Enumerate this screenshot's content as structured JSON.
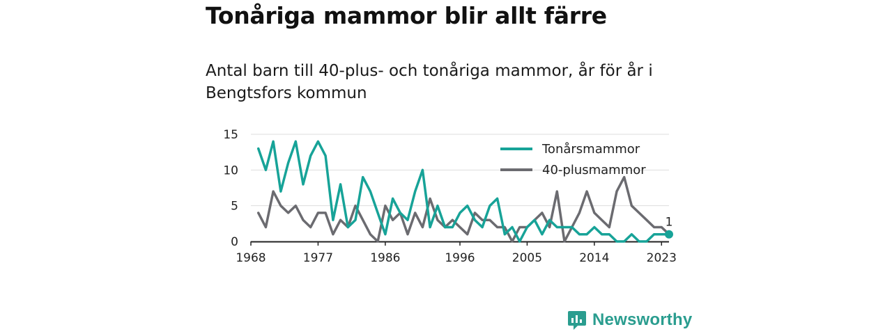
{
  "title": "Tonåriga mammor blir allt färre",
  "subtitle": "Antal barn till 40-plus- och tonåriga mammor, år för år i Bengtsfors kommun",
  "brand": {
    "name": "Newsworthy",
    "icon": "newsworthy-logo-icon",
    "color": "#2a9d8f"
  },
  "chart_data": {
    "type": "line",
    "title": "Tonåriga mammor blir allt färre",
    "subtitle": "Antal barn till 40-plus- och tonåriga mammor, år för år i Bengtsfors kommun",
    "xlim": [
      1968,
      2024
    ],
    "ylim": [
      0,
      15
    ],
    "x_ticks": [
      "1968",
      "1977",
      "1986",
      "1996",
      "2005",
      "2014",
      "2023"
    ],
    "y_ticks": [
      "0",
      "5",
      "10",
      "15"
    ],
    "grid": "horizontal",
    "legend": "top-right",
    "x": [
      1969,
      1970,
      1971,
      1972,
      1973,
      1974,
      1975,
      1976,
      1977,
      1978,
      1979,
      1980,
      1981,
      1982,
      1983,
      1984,
      1985,
      1986,
      1987,
      1988,
      1989,
      1990,
      1991,
      1992,
      1993,
      1994,
      1995,
      1996,
      1997,
      1998,
      1999,
      2000,
      2001,
      2002,
      2003,
      2004,
      2005,
      2006,
      2007,
      2008,
      2009,
      2010,
      2011,
      2012,
      2013,
      2014,
      2015,
      2016,
      2017,
      2018,
      2019,
      2020,
      2021,
      2022,
      2023,
      2024
    ],
    "series": [
      {
        "name": "Tonårsmammor",
        "color": "#17a398",
        "values": [
          13,
          10,
          14,
          7,
          11,
          14,
          8,
          12,
          14,
          12,
          3,
          8,
          2,
          3,
          9,
          7,
          4,
          1,
          6,
          4,
          3,
          7,
          10,
          2,
          5,
          2,
          2,
          4,
          5,
          3,
          2,
          5,
          6,
          1,
          2,
          0,
          2,
          3,
          1,
          3,
          2,
          2,
          2,
          1,
          1,
          2,
          1,
          1,
          0,
          0,
          1,
          0,
          0,
          1,
          1,
          1
        ],
        "end_label": "1"
      },
      {
        "name": "40-plusmammor",
        "color": "#6b6b70",
        "values": [
          4,
          2,
          7,
          5,
          4,
          5,
          3,
          2,
          4,
          4,
          1,
          3,
          2,
          5,
          3,
          1,
          0,
          5,
          3,
          4,
          1,
          4,
          2,
          6,
          3,
          2,
          3,
          2,
          1,
          4,
          3,
          3,
          2,
          2,
          0,
          2,
          2,
          3,
          4,
          2,
          7,
          0,
          2,
          4,
          7,
          4,
          3,
          2,
          7,
          9,
          5,
          4,
          3,
          2,
          2,
          1
        ]
      }
    ]
  }
}
